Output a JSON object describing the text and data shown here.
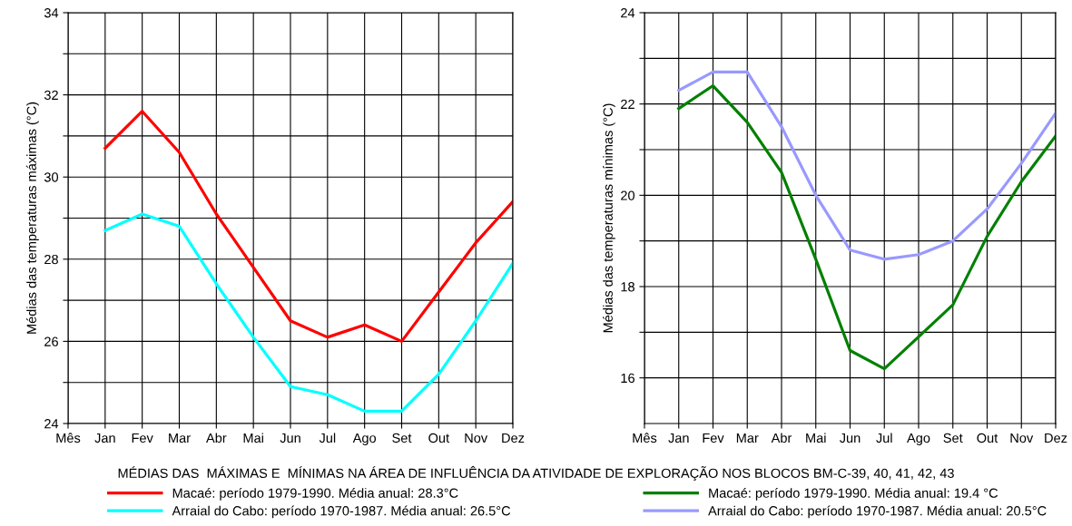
{
  "chart_data": [
    {
      "type": "line",
      "ylabel": "Médias das temperaturas máximas (°C)",
      "categories": [
        "Mês",
        "Jan",
        "Fev",
        "Mar",
        "Abr",
        "Mai",
        "Jun",
        "Jul",
        "Ago",
        "Set",
        "Out",
        "Nov",
        "Dez"
      ],
      "series": [
        {
          "name": "Macaé: período 1979-1990. Média anual: 28.3°C",
          "color": "#ff0000",
          "values": [
            null,
            30.7,
            31.6,
            30.6,
            29.1,
            27.8,
            26.5,
            26.1,
            26.4,
            26.0,
            27.2,
            28.4,
            29.4
          ]
        },
        {
          "name": "Arraial do Cabo: período 1970-1987. Média anual: 26.5°C",
          "color": "#00ffff",
          "values": [
            null,
            28.7,
            29.1,
            28.8,
            27.4,
            26.1,
            24.9,
            24.7,
            24.3,
            24.3,
            25.2,
            26.5,
            27.9
          ]
        }
      ],
      "ylim": [
        24,
        34
      ],
      "yticks": [
        24,
        {
          "value": 25,
          "label": null
        },
        26,
        {
          "value": 27,
          "label": null
        },
        28,
        {
          "value": 29,
          "label": null
        },
        30,
        {
          "value": 31,
          "label": null
        },
        32,
        {
          "value": 33,
          "label": null
        },
        34
      ],
      "grid": true,
      "legend": "bottom",
      "line_style": "solid",
      "marker": "none",
      "annotations": [
        "MÉDIAS DAS  MÁXIMAS E  MÍNIMAS NA ÁREA DE INFLUÊNCIA DA ATIVIDADE DE EXPLORAÇÃO NOS BLOCOS BM-C-39, 40, 41, 42, 43"
      ]
    },
    {
      "type": "line",
      "ylabel": "Médias das temperaturas mínimas (°C)",
      "categories": [
        "Mês",
        "Jan",
        "Fev",
        "Mar",
        "Abr",
        "Mai",
        "Jun",
        "Jul",
        "Ago",
        "Set",
        "Out",
        "Nov",
        "Dez"
      ],
      "series": [
        {
          "name": "Macaé: período 1979-1990. Média anual: 19.4 °C",
          "color": "#008000",
          "values": [
            null,
            21.9,
            22.4,
            21.6,
            20.5,
            18.6,
            16.6,
            16.2,
            16.9,
            17.6,
            19.1,
            20.3,
            21.3
          ]
        },
        {
          "name": "Arraial do Cabo: período 1970-1987. Média anual: 20.5°C",
          "color": "#9999ff",
          "values": [
            null,
            22.3,
            22.7,
            22.7,
            21.5,
            20.0,
            18.8,
            18.6,
            18.7,
            19.0,
            19.7,
            20.7,
            21.8
          ]
        }
      ],
      "ylim": [
        15,
        24
      ],
      "yticks": [
        16,
        {
          "value": 17,
          "label": null
        },
        18,
        {
          "value": 19,
          "label": null
        },
        20,
        {
          "value": 21,
          "label": null
        },
        22,
        {
          "value": 23,
          "label": null
        },
        24
      ],
      "grid": true,
      "legend": "bottom",
      "line_style": "solid",
      "marker": "none"
    }
  ]
}
